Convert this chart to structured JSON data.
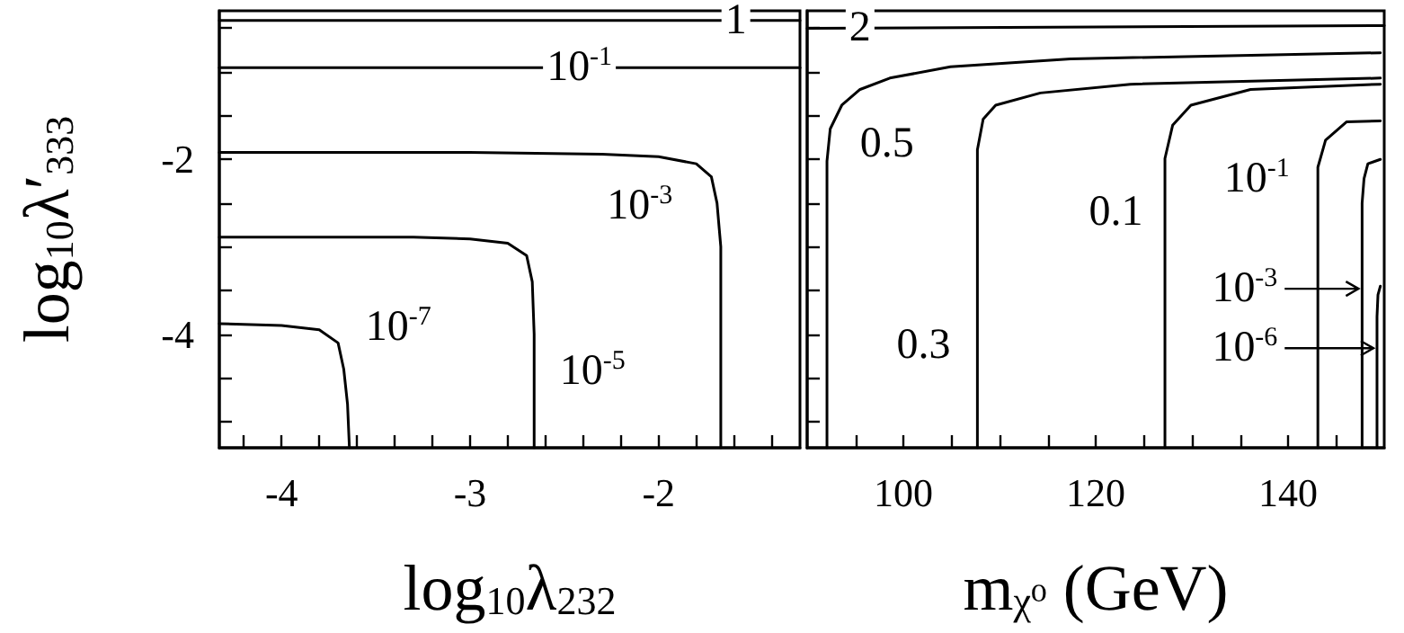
{
  "chart_data": [
    {
      "type": "line",
      "ylabel": "log$_{10}$λ′$_{333}$",
      "xlabel": "log$_{10}$λ$_{232}$",
      "xlim": [
        -4.33,
        -1.25
      ],
      "ylim": [
        -5.3,
        -0.3
      ],
      "xticks": [
        {
          "value": -4.2,
          "label": null
        },
        {
          "value": -4,
          "label": "-4"
        },
        {
          "value": -3.8,
          "label": null
        },
        {
          "value": -3.6,
          "label": null
        },
        {
          "value": -3.4,
          "label": null
        },
        {
          "value": -3.2,
          "label": null
        },
        {
          "value": -3,
          "label": "-3"
        },
        {
          "value": -2.8,
          "label": null
        },
        {
          "value": -2.6,
          "label": null
        },
        {
          "value": -2.4,
          "label": null
        },
        {
          "value": -2.2,
          "label": null
        },
        {
          "value": -2,
          "label": "-2"
        },
        {
          "value": -1.8,
          "label": null
        },
        {
          "value": -1.6,
          "label": null
        },
        {
          "value": -1.4,
          "label": null
        }
      ],
      "yticks": [
        {
          "value": -5,
          "label": null
        },
        {
          "value": -4.5,
          "label": null
        },
        {
          "value": -4,
          "label": "-4"
        },
        {
          "value": -3.5,
          "label": null
        },
        {
          "value": -3,
          "label": null
        },
        {
          "value": -2.5,
          "label": null
        },
        {
          "value": -2,
          "label": "-2"
        },
        {
          "value": -1.5,
          "label": null
        },
        {
          "value": -1,
          "label": null
        },
        {
          "value": -0.5,
          "label": null
        }
      ],
      "grid": false,
      "marker": "none",
      "line_style": "solid",
      "series": [
        {
          "color": "#000000",
          "x": [
            -4.33,
            -1.25
          ],
          "values": [
            -0.41,
            -0.41
          ]
        },
        {
          "color": "#000000",
          "x": [
            -4.33,
            -1.25
          ],
          "values": [
            -0.95,
            -0.95
          ]
        },
        {
          "color": "#000000",
          "x": [
            -4.33,
            -3,
            -2.3,
            -2,
            -1.8,
            -1.72,
            -1.69,
            -1.67,
            -1.67
          ],
          "values": [
            -1.92,
            -1.92,
            -1.94,
            -1.97,
            -2.05,
            -2.2,
            -2.5,
            -3,
            -5.3
          ]
        },
        {
          "color": "#000000",
          "x": [
            -4.33,
            -3.3,
            -3,
            -2.8,
            -2.7,
            -2.67,
            -2.66,
            -2.66
          ],
          "values": [
            -2.89,
            -2.89,
            -2.91,
            -2.96,
            -3.1,
            -3.4,
            -4,
            -5.3
          ]
        },
        {
          "color": "#000000",
          "x": [
            -4.33,
            -4,
            -3.8,
            -3.7,
            -3.67,
            -3.65,
            -3.64
          ],
          "values": [
            -3.88,
            -3.9,
            -3.95,
            -4.1,
            -4.4,
            -4.8,
            -5.3
          ]
        }
      ],
      "annotations": [
        {
          "text": "1",
          "x": -1.59,
          "y": -0.41
        },
        {
          "text": "10$^{-1}$",
          "x": -2.42,
          "y": -0.95
        },
        {
          "text": "10$^{-3}$",
          "x": -2.1,
          "y": -2.53
        },
        {
          "text": "10$^{-5}$",
          "x": -2.35,
          "y": -4.43
        },
        {
          "text": "10$^{-7}$",
          "x": -3.38,
          "y": -3.92
        }
      ]
    },
    {
      "type": "line",
      "xlabel": "m$_{χ⁰}$ (GeV)",
      "tick_labels": "x",
      "xlim": [
        90,
        150
      ],
      "ylim": [
        -5.3,
        -0.3
      ],
      "xticks": [
        {
          "value": 95,
          "label": null
        },
        100,
        {
          "value": 105,
          "label": null
        },
        {
          "value": 110,
          "label": null
        },
        {
          "value": 115,
          "label": null
        },
        120,
        {
          "value": 125,
          "label": null
        },
        {
          "value": 130,
          "label": null
        },
        {
          "value": 135,
          "label": null
        },
        140,
        {
          "value": 145,
          "label": null
        }
      ],
      "yticks": [
        {
          "value": -5,
          "label": null
        },
        {
          "value": -4.5,
          "label": null
        },
        {
          "value": -4,
          "label": null
        },
        {
          "value": -3.5,
          "label": null
        },
        {
          "value": -3,
          "label": null
        },
        {
          "value": -2.5,
          "label": null
        },
        {
          "value": -2,
          "label": null
        },
        {
          "value": -1.5,
          "label": null
        },
        {
          "value": -1,
          "label": null
        },
        {
          "value": -0.5,
          "label": null
        }
      ],
      "grid": false,
      "marker": "none",
      "line_style": "solid",
      "series": [
        {
          "color": "#000000",
          "x": [
            90,
            150
          ],
          "values": [
            -0.5,
            -0.47
          ]
        },
        {
          "color": "#000000",
          "x": [
            92.06,
            92.06,
            92.4,
            93.6,
            95.5,
            98.6,
            104.9,
            117.4,
            149.6
          ],
          "values": [
            -5.3,
            -2.02,
            -1.65,
            -1.38,
            -1.2,
            -1.07,
            -0.94,
            -0.85,
            -0.78
          ]
        },
        {
          "color": "#000000",
          "x": [
            107.7,
            107.7,
            108.3,
            109.6,
            114.25,
            123.6,
            149.6
          ],
          "values": [
            -5.3,
            -1.89,
            -1.54,
            -1.38,
            -1.24,
            -1.14,
            -1.07
          ]
        },
        {
          "color": "#000000",
          "x": [
            127.2,
            127.2,
            128,
            129.9,
            136.1,
            149.6
          ],
          "values": [
            -5.3,
            -1.99,
            -1.61,
            -1.38,
            -1.2,
            -1.14
          ]
        },
        {
          "color": "#000000",
          "x": [
            143.1,
            143.1,
            143.9,
            146.1,
            149.6
          ],
          "values": [
            -5.3,
            -2.09,
            -1.78,
            -1.57,
            -1.56
          ]
        },
        {
          "color": "#000000",
          "x": [
            147.7,
            147.7,
            147.9,
            148.3,
            149.6
          ],
          "values": [
            -5.3,
            -2.5,
            -2.22,
            -2.05,
            -2.0
          ]
        },
        {
          "color": "#000000",
          "x": [
            149.25,
            149.25,
            149.35,
            149.6
          ],
          "values": [
            -5.3,
            -3.8,
            -3.55,
            -3.45
          ]
        }
      ],
      "annotations": [
        {
          "text": "2",
          "x": 95.5,
          "y": -0.5
        },
        {
          "text": "0.5",
          "x": 98.3,
          "y": -1.82
        },
        {
          "text": "0.3",
          "x": 102.1,
          "y": -4.13
        },
        {
          "text": "0.1",
          "x": 122.1,
          "y": -2.6
        },
        {
          "text": "10$^{-1}$",
          "x": 136.75,
          "y": -2.22
        },
        {
          "text": "10$^{-3}$",
          "x": 135.5,
          "y": -3.48
        },
        {
          "text": "10$^{-6}$",
          "x": 135.5,
          "y": -4.16
        }
      ]
    }
  ]
}
